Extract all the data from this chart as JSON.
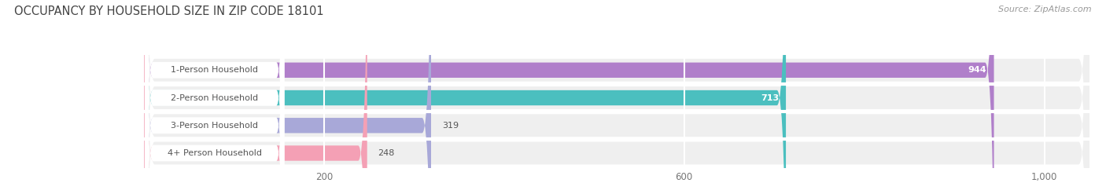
{
  "title": "OCCUPANCY BY HOUSEHOLD SIZE IN ZIP CODE 18101",
  "source": "Source: ZipAtlas.com",
  "categories": [
    "1-Person Household",
    "2-Person Household",
    "3-Person Household",
    "4+ Person Household"
  ],
  "values": [
    944,
    713,
    319,
    248
  ],
  "bar_colors": [
    "#b07fca",
    "#4bbfbf",
    "#a8a8d8",
    "#f4a0b5"
  ],
  "xlim_max": 1050,
  "xticks": [
    200,
    600,
    1000
  ],
  "xtick_labels": [
    "200",
    "600",
    "1,000"
  ],
  "background_color": "#ffffff",
  "row_bg_color": "#efefef",
  "title_color": "#444444",
  "source_color": "#999999",
  "label_color": "#555555",
  "title_fontsize": 10.5,
  "label_fontsize": 8.0,
  "value_fontsize": 8.0,
  "source_fontsize": 8.0,
  "tick_fontsize": 8.5
}
